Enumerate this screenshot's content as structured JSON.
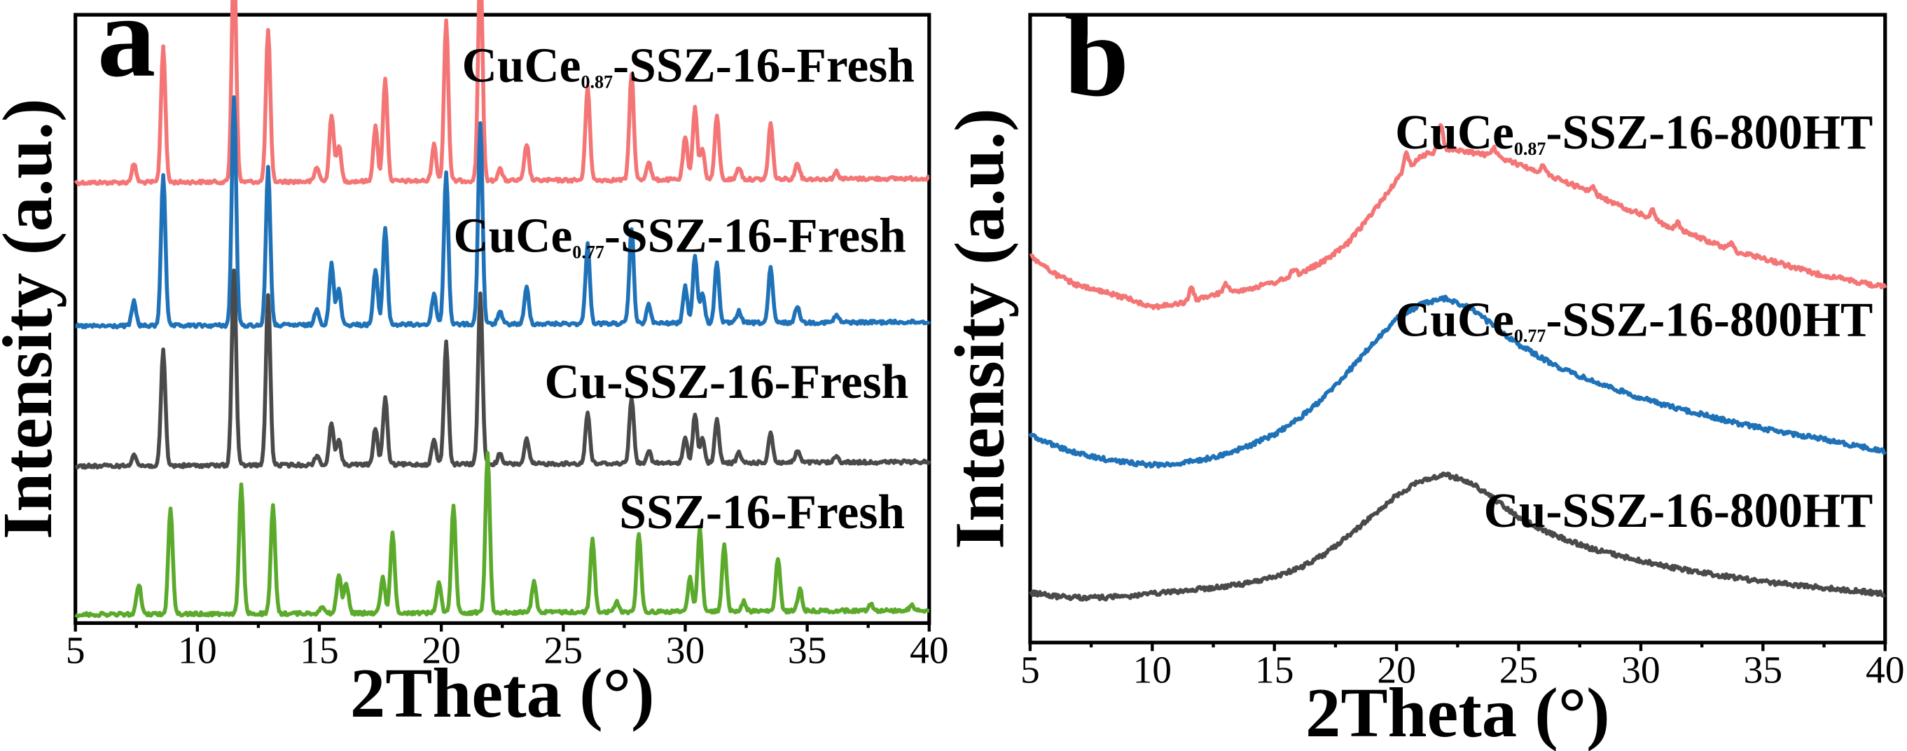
{
  "chart_data": [
    {
      "panel": "a",
      "type": "line",
      "xlabel": "2Theta (°)",
      "ylabel": "Intensity (a.u.)",
      "xlim": [
        5,
        40
      ],
      "xticks": [
        5,
        10,
        15,
        20,
        25,
        30,
        35,
        40
      ],
      "yticks_shown": false,
      "series": [
        {
          "name": "CuCe0.87-SSZ-16-Fresh",
          "label_parts": [
            "CuCe",
            "0.87",
            "-SSZ-16-Fresh"
          ],
          "color": "#F47575",
          "baseline": 150,
          "slope": -0.1,
          "peaks": [
            [
              7.4,
              15
            ],
            [
              8.6,
              112
            ],
            [
              11.5,
              190
            ],
            [
              12.9,
              125
            ],
            [
              14.9,
              12
            ],
            [
              15.5,
              55
            ],
            [
              15.8,
              30
            ],
            [
              17.3,
              45
            ],
            [
              17.7,
              85
            ],
            [
              19.7,
              30
            ],
            [
              20.2,
              132
            ],
            [
              21.6,
              180
            ],
            [
              22.4,
              10
            ],
            [
              23.5,
              30
            ],
            [
              26.0,
              78
            ],
            [
              27.8,
              88
            ],
            [
              28.5,
              15
            ],
            [
              30.0,
              35
            ],
            [
              30.4,
              60
            ],
            [
              30.7,
              25
            ],
            [
              31.3,
              52
            ],
            [
              32.2,
              10
            ],
            [
              33.5,
              46
            ],
            [
              34.6,
              14
            ],
            [
              36.2,
              6
            ]
          ]
        },
        {
          "name": "CuCe0.77-SSZ-16-Fresh",
          "label_parts": [
            "CuCe",
            "0.77",
            "-SSZ-16-Fresh"
          ],
          "color": "#1F72B8",
          "baseline": 268,
          "slope": -0.1,
          "peaks": [
            [
              7.4,
              20
            ],
            [
              8.6,
              125
            ],
            [
              11.5,
              188
            ],
            [
              12.9,
              130
            ],
            [
              14.9,
              14
            ],
            [
              15.5,
              50
            ],
            [
              15.8,
              30
            ],
            [
              17.3,
              45
            ],
            [
              17.7,
              80
            ],
            [
              19.7,
              25
            ],
            [
              20.2,
              125
            ],
            [
              21.6,
              165
            ],
            [
              22.4,
              10
            ],
            [
              23.5,
              30
            ],
            [
              26.0,
              65
            ],
            [
              27.8,
              78
            ],
            [
              28.5,
              15
            ],
            [
              30.0,
              30
            ],
            [
              30.4,
              55
            ],
            [
              30.7,
              25
            ],
            [
              31.3,
              50
            ],
            [
              32.2,
              10
            ],
            [
              33.5,
              45
            ],
            [
              34.6,
              14
            ],
            [
              36.2,
              6
            ]
          ]
        },
        {
          "name": "Cu-SSZ-16-Fresh",
          "label_parts": [
            "Cu-SSZ-16-Fresh"
          ],
          "color": "#4A4A4A",
          "baseline": 383,
          "slope": -0.1,
          "peaks": [
            [
              7.4,
              10
            ],
            [
              8.6,
              95
            ],
            [
              11.5,
              160
            ],
            [
              12.9,
              140
            ],
            [
              14.9,
              8
            ],
            [
              15.5,
              35
            ],
            [
              15.8,
              20
            ],
            [
              17.3,
              30
            ],
            [
              17.7,
              55
            ],
            [
              19.7,
              20
            ],
            [
              20.2,
              100
            ],
            [
              21.6,
              140
            ],
            [
              22.4,
              8
            ],
            [
              23.5,
              20
            ],
            [
              26.0,
              42
            ],
            [
              27.8,
              55
            ],
            [
              28.5,
              10
            ],
            [
              30.0,
              20
            ],
            [
              30.4,
              40
            ],
            [
              30.7,
              20
            ],
            [
              31.3,
              35
            ],
            [
              32.2,
              8
            ],
            [
              33.5,
              25
            ],
            [
              34.6,
              10
            ],
            [
              36.2,
              5
            ]
          ]
        },
        {
          "name": "SSZ-16-Fresh",
          "label_parts": [
            "SSZ-16-Fresh"
          ],
          "color": "#5BAA2C",
          "baseline": 505,
          "slope": -0.1,
          "peaks": [
            [
              7.6,
              25
            ],
            [
              8.9,
              88
            ],
            [
              11.8,
              105
            ],
            [
              13.1,
              88
            ],
            [
              15.1,
              6
            ],
            [
              15.8,
              32
            ],
            [
              16.1,
              25
            ],
            [
              17.6,
              30
            ],
            [
              18.0,
              65
            ],
            [
              19.9,
              25
            ],
            [
              20.5,
              88
            ],
            [
              21.9,
              132
            ],
            [
              23.8,
              25
            ],
            [
              26.2,
              60
            ],
            [
              27.2,
              8
            ],
            [
              28.1,
              65
            ],
            [
              30.2,
              28
            ],
            [
              30.6,
              68
            ],
            [
              31.6,
              55
            ],
            [
              32.4,
              8
            ],
            [
              33.8,
              43
            ],
            [
              34.7,
              18
            ],
            [
              37.6,
              6
            ],
            [
              39.3,
              4
            ]
          ]
        }
      ]
    },
    {
      "panel": "b",
      "type": "line",
      "xlabel": "2Theta (°)",
      "ylabel": "Intensity (a.u.)",
      "xlim": [
        5,
        40
      ],
      "xticks": [
        5,
        10,
        15,
        20,
        25,
        30,
        35,
        40
      ],
      "yticks_shown": false,
      "series": [
        {
          "name": "CuCe0.87-SSZ-16-800HT",
          "label_parts": [
            "CuCe",
            "0.87",
            "-SSZ-16-800HT"
          ],
          "color": "#F47575",
          "curve": [
            [
              5,
              210
            ],
            [
              6,
              225
            ],
            [
              7,
              235
            ],
            [
              8,
              240
            ],
            [
              9,
              245
            ],
            [
              10,
              252
            ],
            [
              11,
              250
            ],
            [
              12,
              245
            ],
            [
              13,
              240
            ],
            [
              14,
              237
            ],
            [
              15,
              232
            ],
            [
              16,
              225
            ],
            [
              17,
              215
            ],
            [
              18,
              200
            ],
            [
              19,
              175
            ],
            [
              20,
              148
            ],
            [
              21,
              128
            ],
            [
              22,
              122
            ],
            [
              23,
              125
            ],
            [
              24,
              128
            ],
            [
              25,
              135
            ],
            [
              26,
              142
            ],
            [
              27,
              150
            ],
            [
              28,
              158
            ],
            [
              29,
              168
            ],
            [
              30,
              176
            ],
            [
              31,
              185
            ],
            [
              32,
              192
            ],
            [
              33,
              200
            ],
            [
              34,
              207
            ],
            [
              35,
              212
            ],
            [
              36,
              218
            ],
            [
              37,
              224
            ],
            [
              38,
              228
            ],
            [
              39,
              232
            ],
            [
              40,
              236
            ]
          ],
          "peaks": [
            [
              11.6,
              10
            ],
            [
              13.0,
              8
            ],
            [
              15.8,
              6
            ],
            [
              20.4,
              15
            ],
            [
              21.8,
              22
            ],
            [
              24.0,
              6
            ],
            [
              26.0,
              6
            ],
            [
              28.0,
              5
            ],
            [
              30.5,
              8
            ],
            [
              31.5,
              6
            ],
            [
              33.7,
              5
            ]
          ]
        },
        {
          "name": "CuCe0.77-SSZ-16-800HT",
          "label_parts": [
            "CuCe",
            "0.77",
            "-SSZ-16-800HT"
          ],
          "color": "#1F72B8",
          "curve": [
            [
              5,
              357
            ],
            [
              6,
              366
            ],
            [
              7,
              373
            ],
            [
              8,
              377
            ],
            [
              9,
              380
            ],
            [
              10,
              382
            ],
            [
              11,
              381
            ],
            [
              12,
              378
            ],
            [
              13,
              373
            ],
            [
              14,
              366
            ],
            [
              15,
              357
            ],
            [
              16,
              344
            ],
            [
              17,
              327
            ],
            [
              18,
              306
            ],
            [
              19,
              283
            ],
            [
              20,
              262
            ],
            [
              21,
              250
            ],
            [
              22,
              245
            ],
            [
              23,
              253
            ],
            [
              24,
              268
            ],
            [
              25,
              283
            ],
            [
              26,
              295
            ],
            [
              27,
              305
            ],
            [
              28,
              313
            ],
            [
              29,
              320
            ],
            [
              30,
              327
            ],
            [
              31,
              333
            ],
            [
              32,
              338
            ],
            [
              33,
              343
            ],
            [
              34,
              348
            ],
            [
              35,
              352
            ],
            [
              36,
              356
            ],
            [
              37,
              359
            ],
            [
              38,
              363
            ],
            [
              39,
              367
            ],
            [
              40,
              371
            ]
          ],
          "peaks": []
        },
        {
          "name": "Cu-SSZ-16-800HT",
          "label_parts": [
            "Cu-SSZ-16-800HT"
          ],
          "color": "#4A4A4A",
          "curve": [
            [
              5,
              487
            ],
            [
              6,
              490
            ],
            [
              7,
              491
            ],
            [
              8,
              491
            ],
            [
              9,
              490
            ],
            [
              10,
              488
            ],
            [
              11,
              486
            ],
            [
              12,
              484
            ],
            [
              13,
              482
            ],
            [
              14,
              479
            ],
            [
              15,
              474
            ],
            [
              16,
              467
            ],
            [
              17,
              456
            ],
            [
              18,
              441
            ],
            [
              19,
              424
            ],
            [
              20,
              407
            ],
            [
              21,
              395
            ],
            [
              22,
              390
            ],
            [
              23,
              396
            ],
            [
              24,
              410
            ],
            [
              25,
              425
            ],
            [
              26,
              436
            ],
            [
              27,
              444
            ],
            [
              28,
              451
            ],
            [
              29,
              456
            ],
            [
              30,
              461
            ],
            [
              31,
              465
            ],
            [
              32,
              469
            ],
            [
              33,
              472
            ],
            [
              34,
              475
            ],
            [
              35,
              478
            ],
            [
              36,
              480
            ],
            [
              37,
              482
            ],
            [
              38,
              484
            ],
            [
              39,
              486
            ],
            [
              40,
              488
            ]
          ],
          "peaks": []
        }
      ]
    }
  ]
}
